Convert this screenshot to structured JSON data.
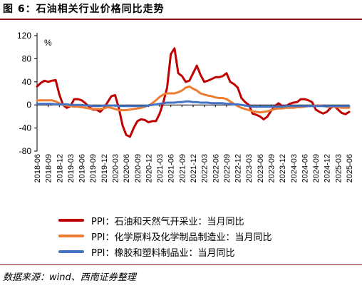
{
  "header": {
    "title": "图 6：石油相关行业价格同比走势"
  },
  "footer": {
    "source": "数据来源：wind、西南证券整理"
  },
  "chart_data": {
    "type": "line",
    "title": "图 6：石油相关行业价格同比走势",
    "ylabel": "%",
    "ylim": [
      -80,
      120
    ],
    "yticks": [
      -80,
      -40,
      0,
      40,
      80,
      120
    ],
    "ytick_labels": [
      "-80",
      "-40",
      "0",
      "40",
      "80",
      "120"
    ],
    "grid": false,
    "legend_position": "bottom",
    "x_tick_labels": [
      "2018-06",
      "2018-09",
      "2018-12",
      "2019-03",
      "2019-06",
      "2019-09",
      "2019-12",
      "2020-03",
      "2020-06",
      "2020-09",
      "2020-12",
      "2021-03",
      "2021-06",
      "2021-09",
      "2021-12",
      "2022-03",
      "2022-06",
      "2022-09",
      "2022-12",
      "2023-03",
      "2023-06",
      "2023-09",
      "2023-12",
      "2024-03",
      "2024-06",
      "2024-09",
      "2024-12",
      "2025-03",
      "2025-06"
    ],
    "x": [
      "2018-06",
      "2018-07",
      "2018-08",
      "2018-09",
      "2018-10",
      "2018-11",
      "2018-12",
      "2019-01",
      "2019-02",
      "2019-03",
      "2019-04",
      "2019-05",
      "2019-06",
      "2019-07",
      "2019-08",
      "2019-09",
      "2019-10",
      "2019-11",
      "2019-12",
      "2020-01",
      "2020-02",
      "2020-03",
      "2020-04",
      "2020-05",
      "2020-06",
      "2020-07",
      "2020-08",
      "2020-09",
      "2020-10",
      "2020-11",
      "2020-12",
      "2021-01",
      "2021-02",
      "2021-03",
      "2021-04",
      "2021-05",
      "2021-06",
      "2021-07",
      "2021-08",
      "2021-09",
      "2021-10",
      "2021-11",
      "2021-12",
      "2022-01",
      "2022-02",
      "2022-03",
      "2022-04",
      "2022-05",
      "2022-06",
      "2022-07",
      "2022-08",
      "2022-09",
      "2022-10",
      "2022-11",
      "2022-12",
      "2023-01",
      "2023-02",
      "2023-03",
      "2023-04",
      "2023-05",
      "2023-06",
      "2023-07",
      "2023-08",
      "2023-09",
      "2023-10",
      "2023-11",
      "2023-12",
      "2024-01",
      "2024-02",
      "2024-03",
      "2024-04",
      "2024-05",
      "2024-06",
      "2024-07",
      "2024-08",
      "2024-09",
      "2024-10",
      "2024-11",
      "2024-12",
      "2025-01",
      "2025-02",
      "2025-03",
      "2025-04",
      "2025-05",
      "2025-06"
    ],
    "series": [
      {
        "name": "PPI：石油和天然气开采业：当月同比",
        "color": "#c00000",
        "values": [
          32,
          38,
          42,
          40,
          42,
          43,
          18,
          0,
          -5,
          -2,
          10,
          10,
          8,
          3,
          -3,
          -8,
          -8,
          -12,
          -5,
          5,
          15,
          17,
          -5,
          -35,
          -52,
          -55,
          -40,
          -28,
          -25,
          -26,
          -30,
          -28,
          -28,
          -15,
          5,
          30,
          88,
          98,
          55,
          50,
          40,
          42,
          55,
          68,
          52,
          40,
          42,
          45,
          48,
          48,
          50,
          55,
          40,
          36,
          30,
          12,
          5,
          0,
          -15,
          -17,
          -20,
          -25,
          -20,
          -10,
          -2,
          3,
          -2,
          -2,
          2,
          4,
          5,
          10,
          10,
          8,
          5,
          -8,
          -12,
          -15,
          -12,
          -5,
          -2,
          -8,
          -14,
          -16,
          -12
        ]
      },
      {
        "name": "PPI：化学原料及化学制品制造业：当月同比",
        "color": "#ed7d31",
        "values": [
          8,
          8,
          8,
          8,
          8,
          6,
          3,
          0,
          -1,
          -2,
          -3,
          -3,
          -4,
          -5,
          -6,
          -7,
          -7,
          -7,
          -6,
          -4,
          -5,
          -7,
          -9,
          -9,
          -9,
          -8,
          -7,
          -6,
          -5,
          -3,
          -1,
          3,
          8,
          14,
          18,
          20,
          20,
          20,
          22,
          25,
          30,
          32,
          28,
          25,
          20,
          18,
          16,
          15,
          13,
          12,
          12,
          10,
          6,
          2,
          -2,
          -5,
          -7,
          -9,
          -11,
          -12,
          -13,
          -12,
          -11,
          -9,
          -7,
          -6,
          -6,
          -5,
          -5,
          -5,
          -4,
          -4,
          -3,
          -2,
          -2,
          -1,
          -1,
          -2,
          -3,
          -3,
          -3,
          -4,
          -5,
          -5,
          -5
        ]
      },
      {
        "name": "PPI：橡胶和塑料制品业：当月同比",
        "color": "#4472c4",
        "values": [
          2,
          2,
          2,
          2,
          2,
          1,
          1,
          1,
          1,
          0,
          0,
          0,
          0,
          -1,
          -1,
          -2,
          -2,
          -2,
          -1,
          -1,
          -1,
          -1,
          -2,
          -2,
          -2,
          -2,
          -2,
          -2,
          -2,
          -2,
          -1,
          0,
          1,
          2,
          3,
          4,
          4,
          4,
          5,
          5,
          6,
          6,
          5,
          5,
          4,
          4,
          4,
          3,
          3,
          3,
          3,
          2,
          2,
          1,
          1,
          0,
          -1,
          -2,
          -3,
          -3,
          -3,
          -3,
          -3,
          -3,
          -3,
          -3,
          -3,
          -2,
          -2,
          -2,
          -2,
          -2,
          -2,
          -2,
          -2,
          -2,
          -2,
          -2,
          -2,
          -2,
          -2,
          -2,
          -2,
          -2,
          -2
        ]
      }
    ]
  }
}
